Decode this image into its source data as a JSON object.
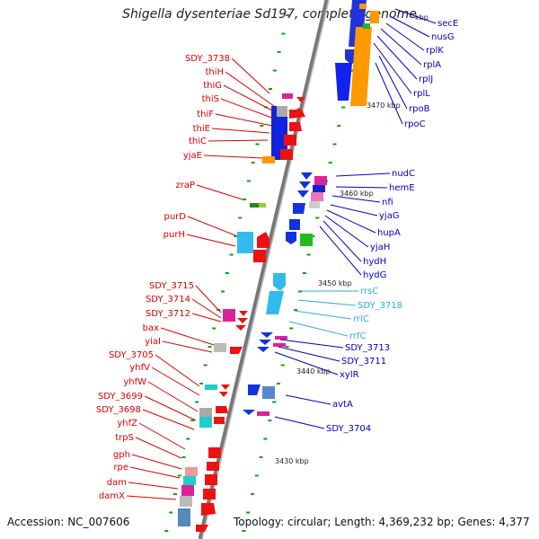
{
  "title": "Shigella dysenteriae Sd197, complete genome",
  "accession": "Accession: NC_007606",
  "topology": "Topology: circular; Length: 4,369,232 bp; Genes: 4,377",
  "colors": {
    "left_label": "#dd0000",
    "right_label": "#0000cc",
    "rna_label": "#33aadd",
    "tick": "#00aa00",
    "axis": "#888888"
  },
  "kbp_labels": [
    "3470 kbp",
    "3460 kbp",
    "3450 kbp",
    "3440 kbp",
    "3430 kbp",
    "kbp"
  ],
  "left_labels": [
    "SDY_3738",
    "thiH",
    "thiG",
    "thiS",
    "thiF",
    "thiE",
    "thiC",
    "yjaE",
    "zraP",
    "purD",
    "purH",
    "SDY_3715",
    "SDY_3714",
    "SDY_3712",
    "bax",
    "yiaI",
    "SDY_3705",
    "yhfV",
    "yhfW",
    "SDY_3699",
    "SDY_3698",
    "yhfZ",
    "trpS",
    "gph",
    "rpe",
    "dam",
    "damX"
  ],
  "right_labels": [
    "secE",
    "nusG",
    "rplK",
    "rplA",
    "rplJ",
    "rplL",
    "rpoB",
    "rpoC",
    "nudC",
    "hemE",
    "nfi",
    "yjaG",
    "hupA",
    "yjaH",
    "hydH",
    "hydG",
    "SDY_3713",
    "SDY_3711",
    "xylR",
    "avtA",
    "SDY_3704"
  ],
  "rna_labels": [
    "rrsC",
    "SDY_3718",
    "rrlC",
    "rrfC"
  ]
}
